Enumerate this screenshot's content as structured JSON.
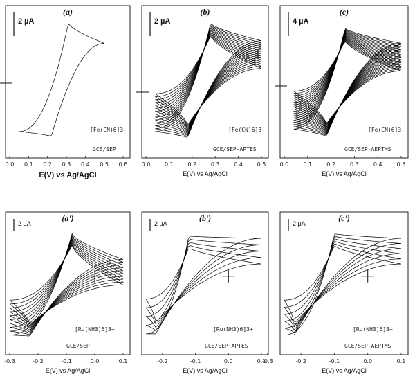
{
  "chart_data": [
    {
      "id": "a",
      "panel_label": "(a)",
      "type": "line",
      "xlim": [
        0.0,
        0.6
      ],
      "xticks": [
        "0.0",
        "0.1",
        "0.2",
        "0.3",
        "0.4",
        "0.5",
        "0.6"
      ],
      "xlabel": "E(V) vs Ag/AgCl",
      "scale_bar": "2 µA",
      "species": "[Fe(CN)6]3-",
      "electrode": "GCE/SEP",
      "cv": {
        "x_start": 0.05,
        "x_end": 0.5,
        "ox_peak_e": 0.31,
        "red_peak_e": 0.22,
        "ox_peak_h": 0.96,
        "red_peak_h": 0.06,
        "plateau_hi": 0.8,
        "plateau_lo": 0.1,
        "cycles": 1
      }
    },
    {
      "id": "b",
      "panel_label": "(b)",
      "type": "line",
      "xlim": [
        0.0,
        0.5
      ],
      "xticks": [
        "0.0",
        "0.1",
        "0.2",
        "0.3",
        "0.4",
        "0.5"
      ],
      "xlabel": "E(V) vs Ag/AgCl",
      "scale_bar": "2 µA",
      "species": "[Fe(CN)6]3-",
      "electrode": "GCE/SEP-APTES",
      "cv": {
        "x_start": 0.04,
        "x_end": 0.5,
        "ox_peak_e": 0.28,
        "red_peak_e": 0.18,
        "ox_peak_h": 0.96,
        "red_peak_h": 0.05,
        "plateau_hi": 0.82,
        "plateau_lo": 0.1,
        "cycles": 14
      }
    },
    {
      "id": "c",
      "panel_label": "(c)",
      "type": "line",
      "xlim": [
        0.0,
        0.5
      ],
      "xticks": [
        "0.0",
        "0.1",
        "0.2",
        "0.3",
        "0.4",
        "0.5"
      ],
      "xlabel": "E(V) vs Ag/AgCl",
      "scale_bar": "4 µA",
      "species": "[Fe(CN)6]3-",
      "electrode": "GCE/SEP-AEPTMS",
      "cv": {
        "x_start": 0.04,
        "x_end": 0.5,
        "ox_peak_e": 0.26,
        "red_peak_e": 0.18,
        "ox_peak_h": 0.92,
        "red_peak_h": 0.06,
        "plateau_hi": 0.8,
        "plateau_lo": 0.12,
        "cycles": 18
      }
    },
    {
      "id": "a2",
      "panel_label": "(a')",
      "type": "line",
      "xlim": [
        -0.3,
        0.1
      ],
      "xticks": [
        "-0.3",
        "-0.2",
        "-0.1",
        "0.0",
        "0.1"
      ],
      "xlabel": "E(V) vs Ag/AgCl",
      "scale_bar": "2 µA",
      "species": "[Ru(NH3)6]3+",
      "electrode": "GCE/SEP",
      "cv": {
        "x_start": -0.3,
        "x_end": 0.1,
        "ox_peak_e": -0.08,
        "red_peak_e": -0.23,
        "ox_peak_h": 0.92,
        "red_peak_h": 0.04,
        "plateau_hi": 0.7,
        "plateau_lo": 0.05,
        "cycles": 10
      }
    },
    {
      "id": "b2",
      "panel_label": "(b')",
      "type": "line",
      "xlim": [
        -0.25,
        0.1
      ],
      "xticks": [
        "-0.2",
        "-0.1",
        "0.0",
        "0.1"
      ],
      "xlabel": "E(V) vs Ag/AgCl",
      "scale_bar": "2 µA",
      "species": "[Ru(NH3)6]3+",
      "electrode": "GCE/SEP-APTES",
      "cv": {
        "x_start": -0.25,
        "x_end": 0.1,
        "ox_peak_e": -0.12,
        "red_peak_e": -0.22,
        "ox_peak_h": 0.9,
        "red_peak_h": 0.06,
        "plateau_hi": 0.88,
        "plateau_lo": 0.06,
        "cycles": 5
      }
    },
    {
      "id": "c2",
      "panel_label": "(c')",
      "type": "line",
      "xlim": [
        -0.25,
        0.1
      ],
      "xticks": [
        "-0.3",
        "-0.2",
        "-0.1",
        "0.0",
        "0.1"
      ],
      "xlabel": "E(V) vs Ag/AgCl",
      "scale_bar": "2 µA",
      "species": "[Ru(NH3)6]3+",
      "electrode": "GCE/SEP-AEPTMS",
      "cv": {
        "x_start": -0.25,
        "x_end": 0.1,
        "ox_peak_e": -0.1,
        "red_peak_e": -0.22,
        "ox_peak_h": 0.92,
        "red_peak_h": 0.05,
        "plateau_hi": 0.88,
        "plateau_lo": 0.05,
        "cycles": 6
      }
    }
  ]
}
